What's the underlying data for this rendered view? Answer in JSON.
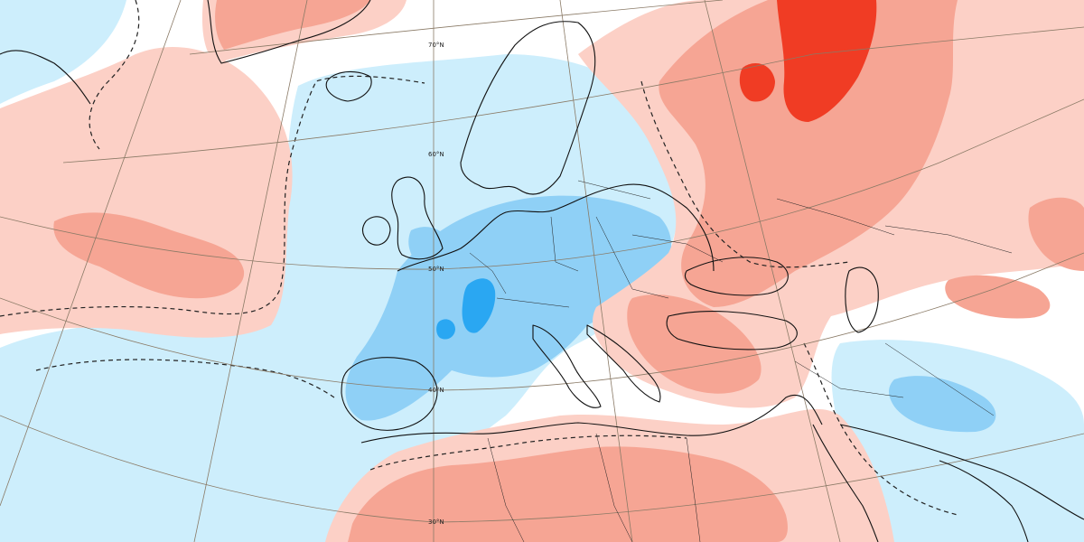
{
  "map": {
    "latitude_labels": [
      "70°N",
      "60°N",
      "50°N",
      "40°N",
      "30°N"
    ]
  },
  "colors": {
    "neg_strong": "#2aa7f2",
    "neg_medium": "#8fd0f6",
    "neg_light": "#cdeefc",
    "pos_light": "#fcd0c6",
    "pos_medium": "#f6a594",
    "pos_strong": "#f03c24",
    "coast": "#111111",
    "graticule": "#8a7a66",
    "background": "#ffffff"
  }
}
